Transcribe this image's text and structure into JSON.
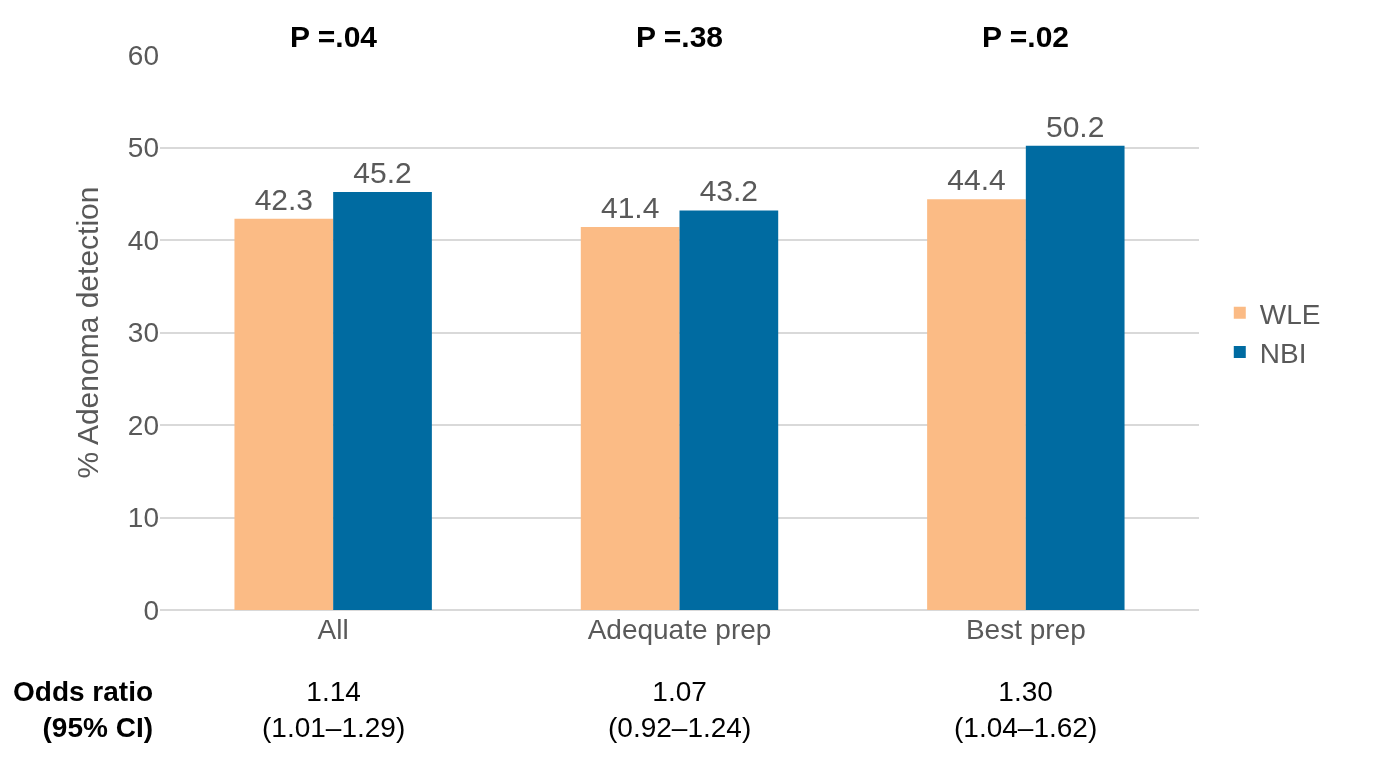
{
  "chart_data": {
    "type": "bar",
    "ylabel": "% Adenoma detection",
    "categories": [
      "All",
      "Adequate prep",
      "Best prep"
    ],
    "series": [
      {
        "name": "WLE",
        "color": "#fbbb85",
        "values": [
          42.3,
          41.4,
          44.4
        ]
      },
      {
        "name": "NBI",
        "color": "#006ba1",
        "values": [
          45.2,
          43.2,
          50.2
        ]
      }
    ],
    "ylim": [
      0,
      60
    ],
    "yticks": [
      0,
      10,
      20,
      30,
      40,
      50,
      60
    ],
    "grid": "y",
    "legend": "right",
    "data_labels": true,
    "annotations": [
      "P =.04",
      "P =.38",
      "P =.02",
      "Odds ratio\n(95% CI)",
      "1.14\n(1.01–1.29)",
      "1.07\n(0.92–1.24)",
      "1.30\n(1.04–1.62)"
    ]
  }
}
